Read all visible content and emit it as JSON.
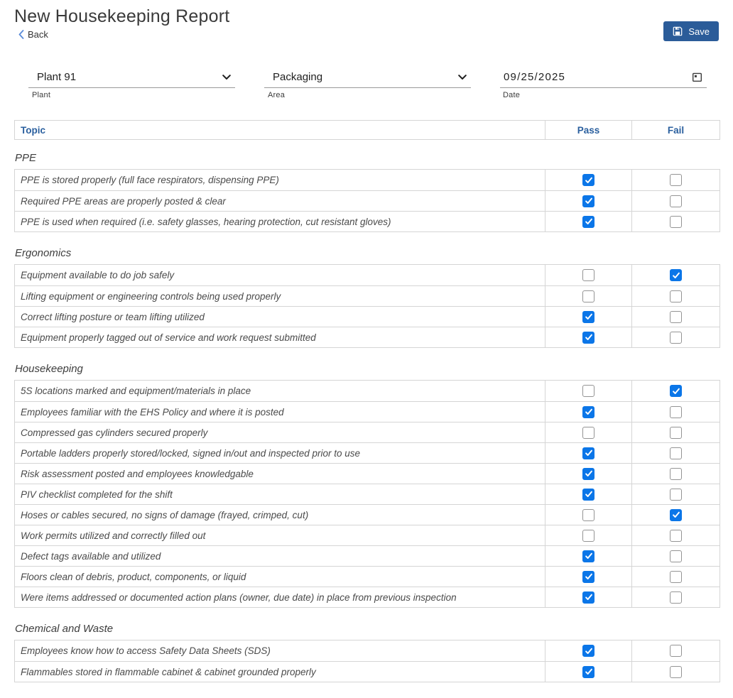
{
  "header": {
    "title": "New Housekeeping Report",
    "back_label": "Back",
    "save_label": "Save"
  },
  "icons": {
    "back": "chevron-left-icon",
    "save": "floppy-disk-icon",
    "select": "chevron-down-icon",
    "date": "calendar-icon",
    "checked": "checkmark-icon"
  },
  "form": {
    "plant": {
      "label": "Plant",
      "value": "Plant 91"
    },
    "area": {
      "label": "Area",
      "value": "Packaging"
    },
    "date": {
      "label": "Date",
      "value": "09/25/2025"
    }
  },
  "checklist": {
    "columns": {
      "topic": "Topic",
      "pass": "Pass",
      "fail": "Fail"
    },
    "sections": [
      {
        "name": "PPE",
        "rows": [
          {
            "topic": "PPE is stored properly (full face respirators, dispensing PPE)",
            "pass": true,
            "fail": false
          },
          {
            "topic": "Required PPE areas are properly posted & clear",
            "pass": true,
            "fail": false
          },
          {
            "topic": "PPE is used when required (i.e. safety glasses, hearing protection, cut resistant gloves)",
            "pass": true,
            "fail": false
          }
        ]
      },
      {
        "name": "Ergonomics",
        "rows": [
          {
            "topic": "Equipment available to do job safely",
            "pass": false,
            "fail": true
          },
          {
            "topic": "Lifting equipment or engineering controls being used properly",
            "pass": false,
            "fail": false
          },
          {
            "topic": "Correct lifting posture or team lifting utilized",
            "pass": true,
            "fail": false
          },
          {
            "topic": "Equipment properly tagged out of service and work request submitted",
            "pass": true,
            "fail": false
          }
        ]
      },
      {
        "name": "Housekeeping",
        "rows": [
          {
            "topic": "5S locations marked and equipment/materials in place",
            "pass": false,
            "fail": true
          },
          {
            "topic": "Employees familiar with the EHS Policy and where it is posted",
            "pass": true,
            "fail": false
          },
          {
            "topic": "Compressed gas cylinders secured properly",
            "pass": false,
            "fail": false
          },
          {
            "topic": "Portable ladders properly stored/locked, signed in/out and inspected prior to use",
            "pass": true,
            "fail": false
          },
          {
            "topic": "Risk assessment posted and employees knowledgable",
            "pass": true,
            "fail": false
          },
          {
            "topic": "PIV checklist completed for the shift",
            "pass": true,
            "fail": false
          },
          {
            "topic": "Hoses or cables secured, no signs of damage (frayed, crimped, cut)",
            "pass": false,
            "fail": true
          },
          {
            "topic": "Work permits utilized and correctly filled out",
            "pass": false,
            "fail": false
          },
          {
            "topic": "Defect tags available and utilized",
            "pass": true,
            "fail": false
          },
          {
            "topic": "Floors clean of debris, product, components, or liquid",
            "pass": true,
            "fail": false
          },
          {
            "topic": "Were items addressed or documented action plans (owner, due date) in place from previous inspection",
            "pass": true,
            "fail": false
          }
        ]
      },
      {
        "name": "Chemical and Waste",
        "rows": [
          {
            "topic": "Employees know how to access Safety Data Sheets (SDS)",
            "pass": true,
            "fail": false
          },
          {
            "topic": "Flammables stored in flammable cabinet & cabinet grounded properly",
            "pass": true,
            "fail": false
          }
        ]
      }
    ]
  },
  "colors": {
    "accent_blue": "#2a5f9e",
    "save_button_blue": "#2b5c99",
    "checkbox_checked_blue": "#0b76e8",
    "border_gray": "#d5d5d5"
  }
}
